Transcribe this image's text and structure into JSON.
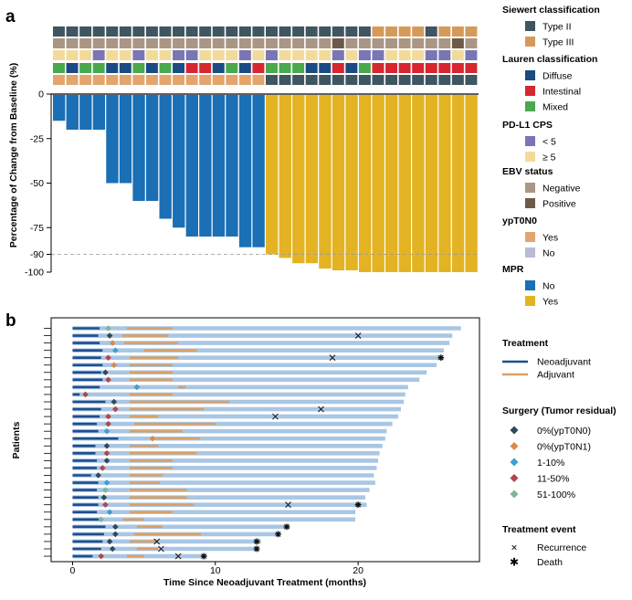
{
  "panel_a_label": "a",
  "panel_b_label": "b",
  "chart_data": [
    {
      "type": "bar",
      "panel": "a",
      "title": "",
      "xlabel": "",
      "ylabel": "Percentage of Change from Baseline (%)",
      "ylim": [
        -100,
        0
      ],
      "yticks": [
        "0",
        "-25",
        "-50",
        "-75",
        "-90",
        "-100"
      ],
      "ytick_values": [
        0,
        -25,
        -50,
        -75,
        -90,
        -100
      ],
      "reference_line": -90,
      "colors": {
        "No": "#1a6fb5",
        "Yes": "#e3b323"
      },
      "values": [
        -15,
        -20,
        -20,
        -20,
        -50,
        -50,
        -60,
        -60,
        -70,
        -75,
        -80,
        -80,
        -80,
        -80,
        -86,
        -86,
        -90,
        -92,
        -95,
        -95,
        -98,
        -99,
        -99,
        -100,
        -100,
        -100,
        -100,
        -100,
        -100,
        -100,
        -100,
        -100
      ],
      "mpr": [
        "No",
        "No",
        "No",
        "No",
        "No",
        "No",
        "No",
        "No",
        "No",
        "No",
        "No",
        "No",
        "No",
        "No",
        "No",
        "No",
        "Yes",
        "Yes",
        "Yes",
        "Yes",
        "Yes",
        "Yes",
        "Yes",
        "Yes",
        "Yes",
        "Yes",
        "Yes",
        "Yes",
        "Yes",
        "Yes",
        "Yes",
        "Yes"
      ],
      "annotation_tracks": {
        "siewert": [
          "II",
          "II",
          "II",
          "II",
          "II",
          "II",
          "II",
          "II",
          "II",
          "II",
          "II",
          "II",
          "II",
          "II",
          "II",
          "II",
          "II",
          "II",
          "II",
          "II",
          "II",
          "II",
          "II",
          "II",
          "III",
          "III",
          "III",
          "III",
          "II",
          "III",
          "III",
          "III"
        ],
        "ypt0n0": [
          "Yes",
          "Yes",
          "Yes",
          "Yes",
          "Yes",
          "Yes",
          "Yes",
          "Yes",
          "Yes",
          "Yes",
          "Yes",
          "Yes",
          "Yes",
          "Yes",
          "Yes",
          "Yes",
          "Yes",
          "Yes",
          "Yes",
          "Yes",
          "Yes",
          "Yes",
          "Yes",
          "Yes",
          "Yes",
          "Yes",
          "Yes",
          "Yes",
          "Yes",
          "Yes",
          "Yes",
          "Yes"
        ],
        "cps": [
          "H",
          "H",
          "H",
          "L",
          "H",
          "H",
          "L",
          "H",
          "H",
          "L",
          "L",
          "H",
          "H",
          "H",
          "L",
          "H",
          "L",
          "H",
          "H",
          "H",
          "H",
          "L",
          "H",
          "L",
          "L",
          "H",
          "H",
          "H",
          "L",
          "L",
          "H",
          "L"
        ],
        "ebv": [
          "N",
          "N",
          "N",
          "N",
          "N",
          "N",
          "N",
          "N",
          "N",
          "N",
          "N",
          "N",
          "N",
          "N",
          "N",
          "N",
          "N",
          "N",
          "N",
          "N",
          "N",
          "P",
          "N",
          "N",
          "N",
          "N",
          "N",
          "N",
          "N",
          "N",
          "P",
          "N"
        ],
        "lauren": [
          "M",
          "D",
          "M",
          "M",
          "D",
          "D",
          "M",
          "D",
          "M",
          "D",
          "I",
          "I",
          "D",
          "M",
          "D",
          "I",
          "M",
          "M",
          "M",
          "D",
          "D",
          "I",
          "D",
          "M",
          "I",
          "I",
          "I",
          "I",
          "I",
          "I",
          "I",
          "I"
        ],
        "ypt0n0_bottom": [
          "Y",
          "Y",
          "Y",
          "Y",
          "Y",
          "Y",
          "Y",
          "Y",
          "Y",
          "Y",
          "Y",
          "Y",
          "Y",
          "Y",
          "Y",
          "Y",
          "N",
          "N",
          "N",
          "N",
          "N",
          "N",
          "N",
          "N",
          "N",
          "N",
          "N",
          "N",
          "N",
          "N",
          "N",
          "N"
        ]
      }
    },
    {
      "type": "swimmer",
      "panel": "b",
      "xlabel": "Time Since Neoadjuvant Treatment (months)",
      "ylabel": "Patients",
      "xlim": [
        -1.5,
        28.5
      ],
      "xticks": [
        "0",
        "10",
        "20"
      ],
      "xtick_values": [
        0,
        10,
        20
      ],
      "colors": {
        "neo": "#1f4e8c",
        "adj": "#d9a066",
        "follow": "#a9c6e4"
      },
      "patients": [
        {
          "total": 27.2,
          "neo": 1.9,
          "adj": [
            3.8,
            7.0
          ],
          "dot": 2.5,
          "dc": "g"
        },
        {
          "total": 26.6,
          "neo": 1.8,
          "adj": [
            3.5,
            6.7
          ],
          "dot": 2.6,
          "dc": "n",
          "ev": "x",
          "evt": 20.0
        },
        {
          "total": 26.4,
          "neo": 1.9,
          "adj": [
            3.6,
            7.4
          ],
          "dot": 2.8,
          "dc": "o"
        },
        {
          "total": 26.0,
          "neo": 2.1,
          "adj": [
            5.0,
            8.7
          ],
          "dot": 3.0,
          "dc": "b"
        },
        {
          "total": 25.9,
          "neo": 2.0,
          "adj": [
            4.0,
            7.4
          ],
          "dot": 2.5,
          "dc": "r",
          "ev": "x",
          "evt": 18.2,
          "ev2": "d",
          "evt2": 25.8
        },
        {
          "total": 25.5,
          "neo": 2.1,
          "adj": [
            4.0,
            7.0
          ],
          "dot": 2.9,
          "dc": "o"
        },
        {
          "total": 24.8,
          "neo": 2.0,
          "adj": [
            4.0,
            7.0
          ],
          "dot": 2.3,
          "dc": "n"
        },
        {
          "total": 24.3,
          "neo": 2.1,
          "adj": [
            4.0,
            7.0
          ],
          "dot": 2.5,
          "dc": "r"
        },
        {
          "total": 23.5,
          "neo": 1.9,
          "adj": [
            7.4,
            7.9
          ],
          "dot": 4.5,
          "dc": "b"
        },
        {
          "total": 23.3,
          "neo": 0.5,
          "adj": [
            4.0,
            7.0
          ],
          "dot": 0.9,
          "dc": "r"
        },
        {
          "total": 23.2,
          "neo": 2.3,
          "adj": [
            4.0,
            11.0
          ],
          "dot": 2.9,
          "dc": "n"
        },
        {
          "total": 23.0,
          "neo": 2.0,
          "adj": [
            4.0,
            9.2
          ],
          "dot": 3.0,
          "dc": "r",
          "ev": "x",
          "evt": 17.4
        },
        {
          "total": 22.8,
          "neo": 1.9,
          "adj": [
            4.0,
            6.0
          ],
          "dot": 2.5,
          "dc": "r",
          "ev": "x",
          "evt": 14.2
        },
        {
          "total": 22.4,
          "neo": 1.7,
          "adj": [
            4.3,
            10.0
          ],
          "dot": 2.5,
          "dc": "r"
        },
        {
          "total": 22.0,
          "neo": 1.8,
          "adj": [
            4.0,
            7.7
          ],
          "dot": 2.4,
          "dc": "b"
        },
        {
          "total": 21.9,
          "neo": 3.2,
          "adj": [
            5.8,
            8.9
          ],
          "dot": 5.6,
          "dc": "o"
        },
        {
          "total": 21.7,
          "neo": 1.6,
          "adj": [
            4.0,
            6.0
          ],
          "dot": 2.4,
          "dc": "n"
        },
        {
          "total": 21.5,
          "neo": 1.6,
          "adj": [
            4.0,
            8.7
          ],
          "dot": 2.4,
          "dc": "r"
        },
        {
          "total": 21.4,
          "neo": 1.7,
          "adj": [
            4.0,
            7.0
          ],
          "dot": 2.4,
          "dc": "n"
        },
        {
          "total": 21.3,
          "neo": 1.7,
          "adj": [
            4.0,
            7.0
          ],
          "dot": 2.1,
          "dc": "r"
        },
        {
          "total": 21.1,
          "neo": 1.3,
          "adj": [
            4.0,
            6.3
          ],
          "dot": 1.8,
          "dc": "n"
        },
        {
          "total": 21.2,
          "neo": 1.8,
          "adj": [
            4.0,
            6.1
          ],
          "dot": 2.4,
          "dc": "b"
        },
        {
          "total": 20.8,
          "neo": 1.7,
          "adj": [
            4.0,
            8.0
          ],
          "dot": 2.3,
          "dc": "g"
        },
        {
          "total": 20.5,
          "neo": 1.8,
          "adj": [
            4.0,
            8.0
          ],
          "dot": 2.2,
          "dc": "n"
        },
        {
          "total": 20.6,
          "neo": 1.8,
          "adj": [
            4.0,
            8.5
          ],
          "dot": 2.3,
          "dc": "r",
          "ev": "x",
          "evt": 15.1,
          "ev2": "d",
          "evt2": 20.0
        },
        {
          "total": 19.8,
          "neo": 1.7,
          "adj": [
            4.0,
            7.0
          ],
          "dot": 2.6,
          "dc": "b"
        },
        {
          "total": 19.8,
          "neo": 1.9,
          "adj": [
            3.5,
            5.0
          ],
          "dot": 2.0,
          "dc": "g"
        },
        {
          "total": 15.2,
          "neo": 2.3,
          "adj": [
            4.5,
            6.3
          ],
          "dot": 3.0,
          "dc": "n",
          "ev": "d",
          "evt": 15.0
        },
        {
          "total": 14.5,
          "neo": 2.2,
          "adj": [
            4.3,
            9.0
          ],
          "dot": 3.0,
          "dc": "n",
          "ev": "d",
          "evt": 14.4
        },
        {
          "total": 13.2,
          "neo": 2.1,
          "adj": [
            4.0,
            5.8
          ],
          "dot": 2.6,
          "dc": "n",
          "ev": "x",
          "evt": 5.9,
          "ev2": "d",
          "evt2": 12.9
        },
        {
          "total": 12.9,
          "neo": 2.0,
          "adj": [
            4.5,
            6.0
          ],
          "dot": 2.8,
          "dc": "n",
          "ev": "x",
          "evt": 6.2,
          "ev2": "d",
          "evt2": 12.9
        },
        {
          "total": 9.2,
          "neo": 1.4,
          "adj": [
            3.8,
            5.0
          ],
          "dot": 2.0,
          "dc": "r",
          "ev": "x",
          "evt": 7.4,
          "ev2": "d",
          "evt2": 9.2
        }
      ]
    }
  ],
  "legend_a": {
    "siewert": {
      "title": "Siewert classification",
      "items": [
        {
          "label": "Type II",
          "color": "#3f5560"
        },
        {
          "label": "Type III",
          "color": "#d59a5a"
        }
      ]
    },
    "lauren": {
      "title": "Lauren classification",
      "items": [
        {
          "label": "Diffuse",
          "color": "#1b4b82"
        },
        {
          "label": "Intestinal",
          "color": "#d62630"
        },
        {
          "label": "Mixed",
          "color": "#4aa84d"
        }
      ]
    },
    "cps": {
      "title": "PD-L1 CPS",
      "items": [
        {
          "label": "< 5",
          "color": "#7a76b5"
        },
        {
          "label": "≥ 5",
          "color": "#f2db9a"
        }
      ]
    },
    "ebv": {
      "title": "EBV status",
      "items": [
        {
          "label": "Negative",
          "color": "#a99684"
        },
        {
          "label": "Positive",
          "color": "#6e5a48"
        }
      ]
    },
    "ypt0n0": {
      "title": "ypT0N0",
      "items": [
        {
          "label": "Yes",
          "color": "#e3a46e"
        },
        {
          "label": "No",
          "color": "#bbb9d5"
        }
      ]
    },
    "mpr": {
      "title": "MPR",
      "items": [
        {
          "label": "No",
          "color": "#1a6fb5"
        },
        {
          "label": "Yes",
          "color": "#e3b323"
        }
      ]
    }
  },
  "legend_b": {
    "treatment": {
      "title": "Treatment",
      "items": [
        {
          "label": "Neoadjuvant",
          "color": "#1f4e8c"
        },
        {
          "label": "Adjuvant",
          "color": "#d9a066"
        }
      ]
    },
    "surgery": {
      "title": "Surgery (Tumor residual)",
      "items": [
        {
          "label": "0%(ypT0N0)",
          "color": "#2e4a5a"
        },
        {
          "label": "0%(ypT0N1)",
          "color": "#d98b4a"
        },
        {
          "label": "1-10%",
          "color": "#3aa0d0"
        },
        {
          "label": "11-50%",
          "color": "#b0474a"
        },
        {
          "label": "51-100%",
          "color": "#7fb69b"
        }
      ]
    },
    "event": {
      "title": "Treatment event",
      "items": [
        {
          "label": "Recurrence",
          "symbol": "×"
        },
        {
          "label": "Death",
          "symbol": "✱"
        }
      ]
    }
  }
}
